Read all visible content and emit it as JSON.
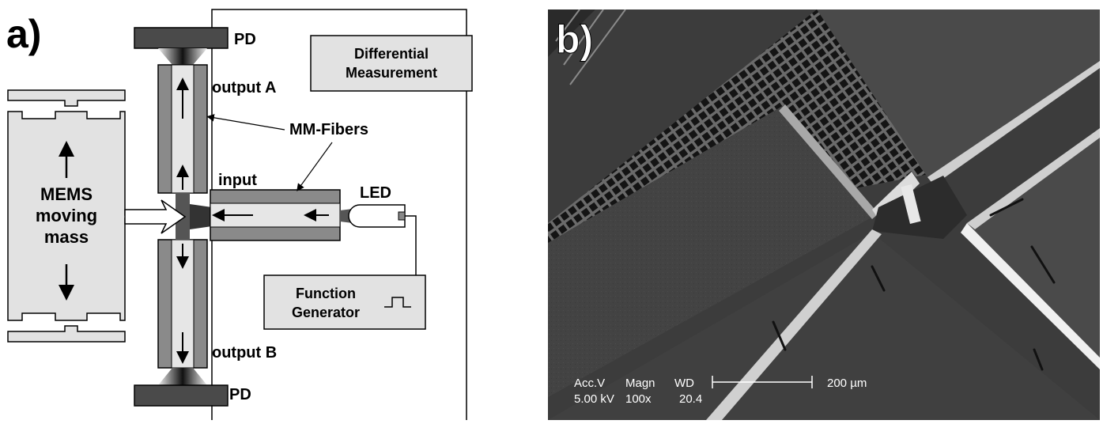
{
  "panel_a": {
    "panel_label": "a)",
    "pd_top": "PD",
    "pd_bottom": "PD",
    "output_a": "output A",
    "output_b": "output B",
    "mm_fibers": "MM-Fibers",
    "input": "input",
    "led": "LED",
    "differential_line1": "Differential",
    "differential_line2": "Measurement",
    "mems_line1": "MEMS",
    "mems_line2": "moving",
    "mems_line3": "mass",
    "function_line1": "Function",
    "function_line2": "Generator"
  },
  "panel_b": {
    "panel_label": "b)",
    "meta_header": [
      "Acc.V",
      "Magn",
      "WD"
    ],
    "meta_values": [
      "5.00 kV",
      "100x",
      "20.4"
    ],
    "scale_bar_label": "200 µm"
  },
  "colors": {
    "fiber_outer": "#8a8a8a",
    "fiber_core": "#e6e6e6",
    "photodiode": "#4a4a4a",
    "box_fill": "#e2e2e2",
    "sem_background": "#3c3c3c"
  }
}
